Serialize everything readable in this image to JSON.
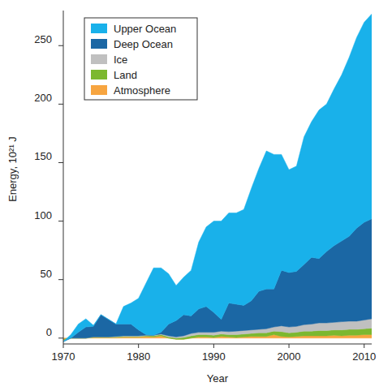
{
  "chart_data": {
    "type": "area",
    "stacked": true,
    "x_label": "Year",
    "y_label": "Energy, 10²¹ J",
    "x": [
      1970,
      1971,
      1972,
      1973,
      1974,
      1975,
      1976,
      1977,
      1978,
      1979,
      1980,
      1981,
      1982,
      1983,
      1984,
      1985,
      1986,
      1987,
      1988,
      1989,
      1990,
      1991,
      1992,
      1993,
      1994,
      1995,
      1996,
      1997,
      1998,
      1999,
      2000,
      2001,
      2002,
      2003,
      2004,
      2005,
      2006,
      2007,
      2008,
      2009,
      2010,
      2011
    ],
    "xlim": [
      1970,
      2011
    ],
    "xticks": [
      1970,
      1980,
      1990,
      2000,
      2010
    ],
    "ylim": [
      -5,
      280
    ],
    "yticks": [
      0,
      50,
      100,
      150,
      200,
      250
    ],
    "grid": false,
    "legend": "upper left",
    "series": [
      {
        "name": "Upper Ocean",
        "color": "#19b1ea",
        "values": [
          0,
          3,
          7,
          7,
          1,
          0,
          0,
          0,
          15,
          18,
          27,
          44,
          57.5,
          55,
          43,
          30,
          32,
          39,
          57,
          68,
          78,
          84,
          77,
          78,
          82,
          96,
          105,
          118,
          115,
          99,
          88,
          90,
          109,
          116,
          127,
          126,
          134,
          142,
          153,
          163,
          171,
          175
        ]
      },
      {
        "name": "Deep Ocean",
        "color": "#1b67a4",
        "values": [
          0,
          0,
          5,
          9.5,
          9,
          19,
          15,
          10.5,
          10,
          10,
          5,
          0.5,
          0,
          1.5,
          10,
          14,
          18,
          15,
          20,
          22,
          17,
          10,
          24.5,
          23,
          21.5,
          25,
          32.5,
          34,
          32.5,
          47.5,
          46.5,
          47,
          51.5,
          57,
          55,
          61,
          65.5,
          69,
          72.5,
          79.5,
          83.5,
          85.5
        ]
      },
      {
        "name": "Ice",
        "color": "#c0c0c0",
        "values": [
          -1,
          0,
          0,
          0,
          0,
          0,
          0,
          0.5,
          0.5,
          0.5,
          0.5,
          0.5,
          0.5,
          0.5,
          1,
          1,
          1.5,
          2,
          2,
          2,
          2.5,
          2.5,
          2.5,
          3,
          3,
          3,
          3,
          3.5,
          3.5,
          5,
          5,
          5,
          5.5,
          6,
          6.5,
          6.5,
          6.5,
          7,
          7,
          7,
          7.5,
          8
        ]
      },
      {
        "name": "Land",
        "color": "#7cb82f",
        "values": [
          -1,
          0,
          0,
          0,
          0.5,
          0.5,
          0.5,
          0.5,
          0.5,
          0.5,
          0.5,
          0.5,
          1,
          1,
          1,
          1,
          1.5,
          2,
          2,
          2,
          2,
          2,
          2,
          2.5,
          2.5,
          2.5,
          3,
          3,
          3,
          4,
          3.5,
          3.5,
          4,
          4,
          4.5,
          4.5,
          4.5,
          5,
          5,
          5,
          5,
          5.5
        ]
      },
      {
        "name": "Atmosphere",
        "color": "#f7a540",
        "values": [
          -1,
          0,
          0,
          0,
          0.5,
          0.5,
          0.5,
          0.5,
          1,
          1,
          1,
          1.5,
          1,
          2,
          0,
          -1,
          -1,
          0,
          1,
          1,
          0.5,
          1.5,
          1,
          0.5,
          1,
          1.5,
          1.5,
          1.5,
          3,
          1.5,
          1,
          1.5,
          2,
          2,
          2,
          2,
          2.5,
          2,
          2.5,
          2.5,
          3,
          3
        ]
      }
    ]
  }
}
